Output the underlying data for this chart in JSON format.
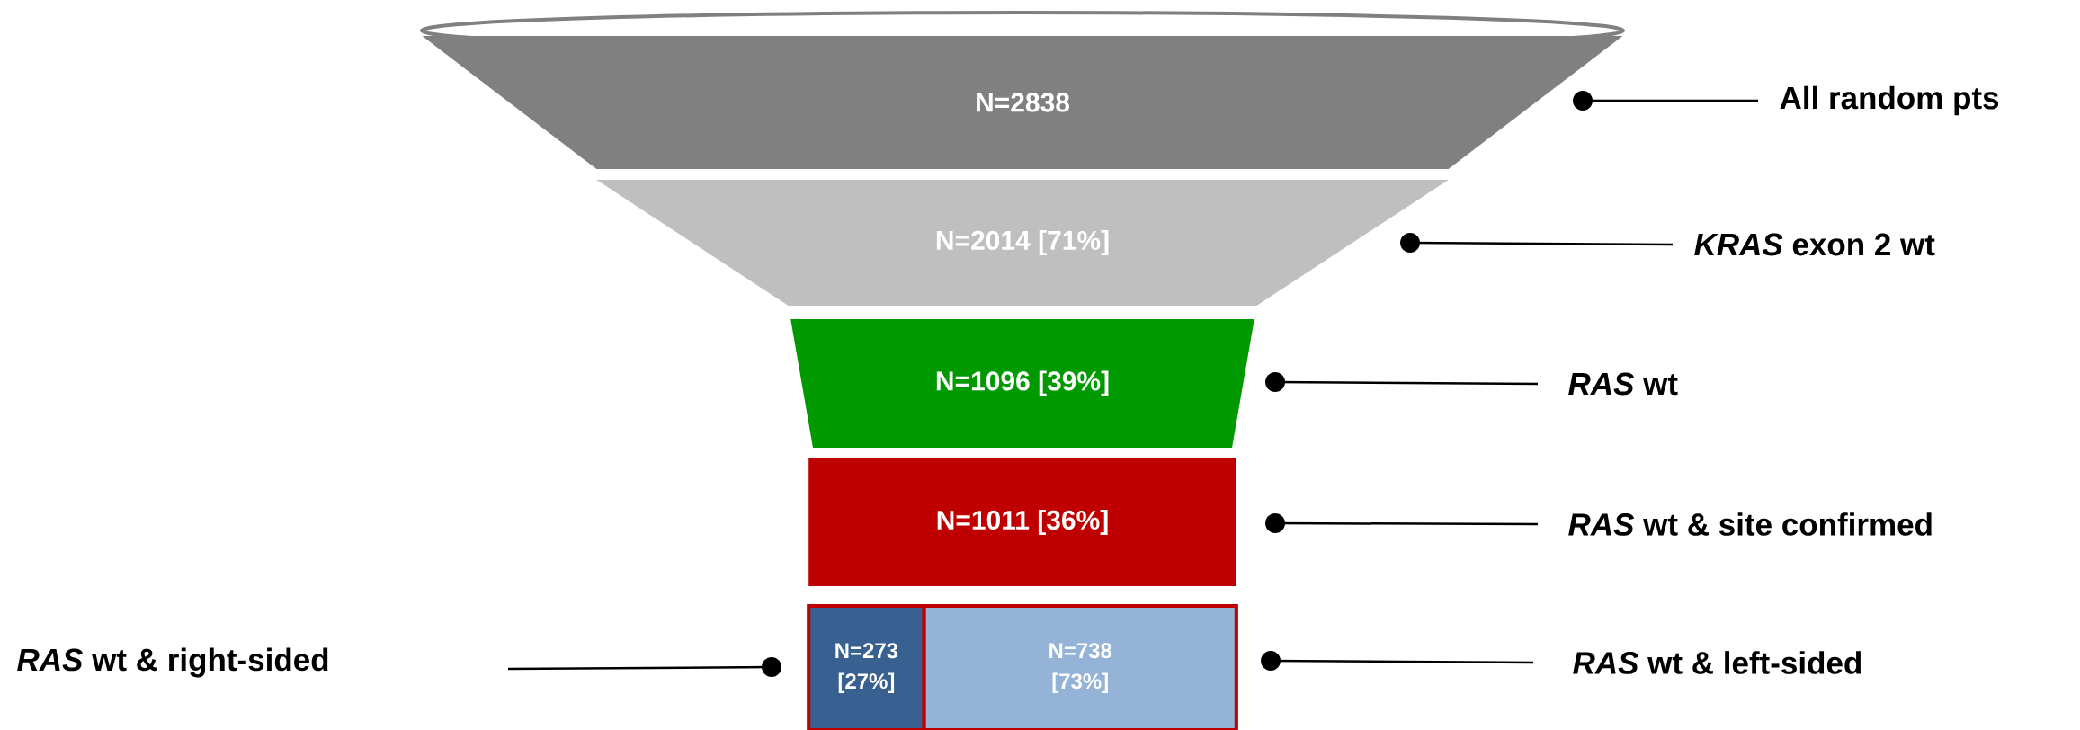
{
  "chart_data": {
    "type": "other",
    "categories": [
      "All random pts",
      "*KRAS* exon 2 wt",
      "*RAS* wt",
      "*RAS* wt & site confirmed",
      "*RAS* wt & right-sided",
      "*RAS* wt & left-sided"
    ],
    "values": [
      2838,
      2014,
      1096,
      1011,
      273,
      738
    ],
    "value_labels": [
      "N=2838",
      "N=2014 [71%]",
      "N=1096 [39%]",
      "N=1011 [36%]",
      "N=273 [27%]",
      "N=738 [73%]"
    ],
    "colors": [
      "#808080",
      "#bfbfbf",
      "#009900",
      "#c00000",
      "#386191",
      "#95b3d7"
    ]
  }
}
